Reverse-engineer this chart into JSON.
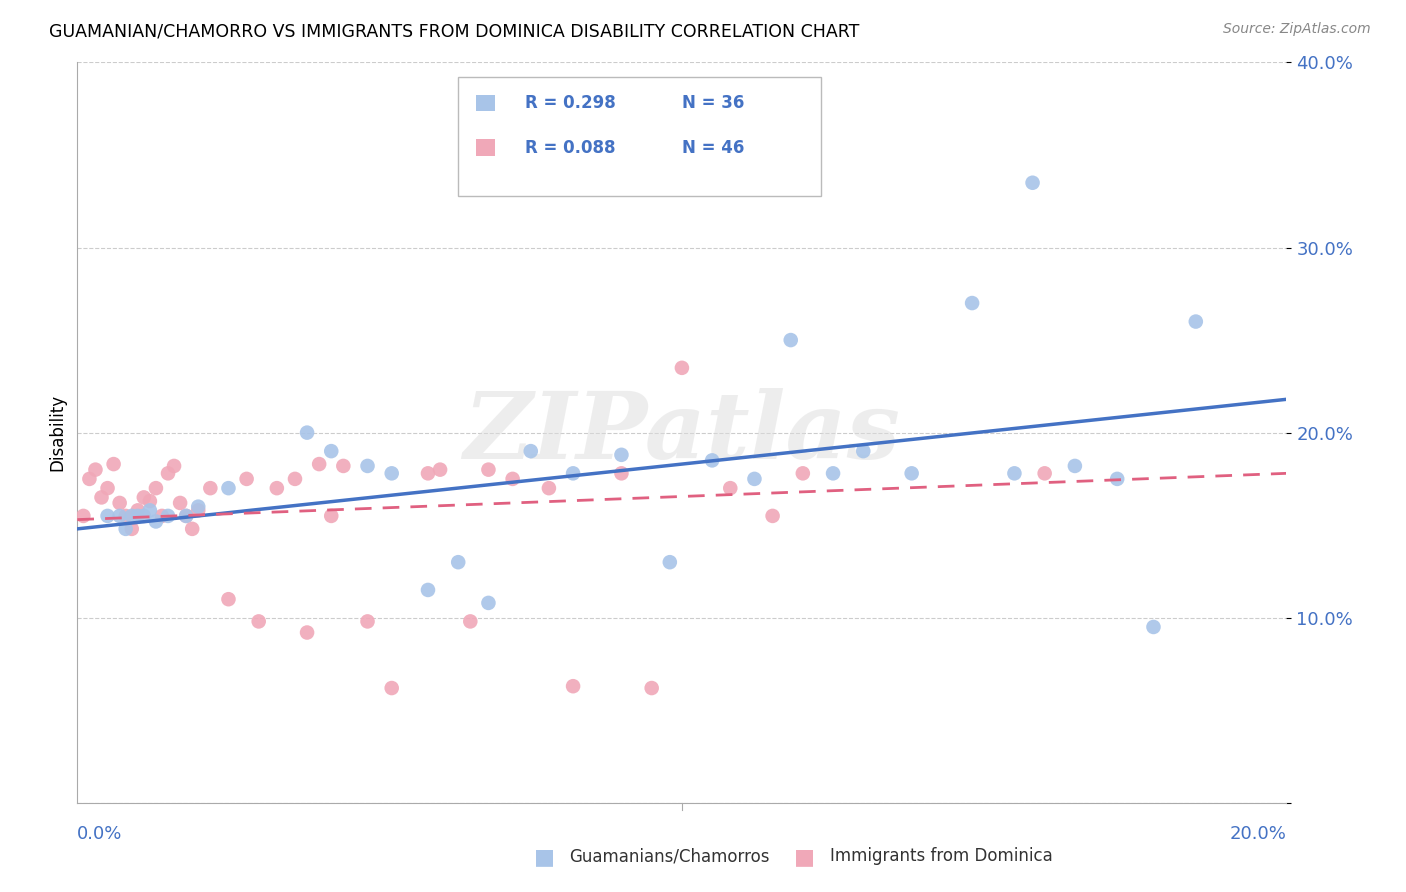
{
  "title": "GUAMANIAN/CHAMORRO VS IMMIGRANTS FROM DOMINICA DISABILITY CORRELATION CHART",
  "source": "Source: ZipAtlas.com",
  "ylabel": "Disability",
  "xlim": [
    0.0,
    0.2
  ],
  "ylim": [
    0.0,
    0.4
  ],
  "yticks": [
    0.0,
    0.1,
    0.2,
    0.3,
    0.4
  ],
  "ytick_labels": [
    "",
    "10.0%",
    "20.0%",
    "30.0%",
    "40.0%"
  ],
  "blue_R": 0.298,
  "blue_N": 36,
  "pink_R": 0.088,
  "pink_N": 46,
  "blue_color": "#A8C4E8",
  "pink_color": "#F0A8B8",
  "blue_line_color": "#4472C4",
  "pink_line_color": "#E06080",
  "legend_label_blue": "Guamanians/Chamorros",
  "legend_label_pink": "Immigrants from Dominica",
  "watermark": "ZIPatlas",
  "blue_x": [
    0.005,
    0.007,
    0.008,
    0.009,
    0.01,
    0.011,
    0.012,
    0.013,
    0.015,
    0.018,
    0.02,
    0.025,
    0.038,
    0.042,
    0.048,
    0.052,
    0.058,
    0.063,
    0.068,
    0.075,
    0.082,
    0.09,
    0.098,
    0.105,
    0.112,
    0.118,
    0.125,
    0.13,
    0.138,
    0.148,
    0.155,
    0.158,
    0.165,
    0.172,
    0.178,
    0.185
  ],
  "blue_y": [
    0.155,
    0.155,
    0.148,
    0.155,
    0.155,
    0.155,
    0.158,
    0.152,
    0.155,
    0.155,
    0.16,
    0.17,
    0.2,
    0.19,
    0.182,
    0.178,
    0.115,
    0.13,
    0.108,
    0.19,
    0.178,
    0.188,
    0.13,
    0.185,
    0.175,
    0.25,
    0.178,
    0.19,
    0.178,
    0.27,
    0.178,
    0.335,
    0.182,
    0.175,
    0.095,
    0.26
  ],
  "pink_x": [
    0.001,
    0.002,
    0.003,
    0.004,
    0.005,
    0.006,
    0.007,
    0.008,
    0.009,
    0.01,
    0.011,
    0.012,
    0.013,
    0.014,
    0.015,
    0.016,
    0.017,
    0.018,
    0.019,
    0.02,
    0.022,
    0.025,
    0.028,
    0.03,
    0.033,
    0.036,
    0.038,
    0.04,
    0.042,
    0.044,
    0.048,
    0.052,
    0.058,
    0.06,
    0.065,
    0.068,
    0.072,
    0.078,
    0.082,
    0.09,
    0.095,
    0.1,
    0.108,
    0.115,
    0.12,
    0.16
  ],
  "pink_y": [
    0.155,
    0.175,
    0.18,
    0.165,
    0.17,
    0.183,
    0.162,
    0.155,
    0.148,
    0.158,
    0.165,
    0.163,
    0.17,
    0.155,
    0.178,
    0.182,
    0.162,
    0.155,
    0.148,
    0.158,
    0.17,
    0.11,
    0.175,
    0.098,
    0.17,
    0.175,
    0.092,
    0.183,
    0.155,
    0.182,
    0.098,
    0.062,
    0.178,
    0.18,
    0.098,
    0.18,
    0.175,
    0.17,
    0.063,
    0.178,
    0.062,
    0.235,
    0.17,
    0.155,
    0.178,
    0.178
  ],
  "blue_trend_x0": 0.0,
  "blue_trend_y0": 0.148,
  "blue_trend_x1": 0.2,
  "blue_trend_y1": 0.218,
  "pink_trend_x0": 0.0,
  "pink_trend_y0": 0.153,
  "pink_trend_x1": 0.2,
  "pink_trend_y1": 0.178
}
